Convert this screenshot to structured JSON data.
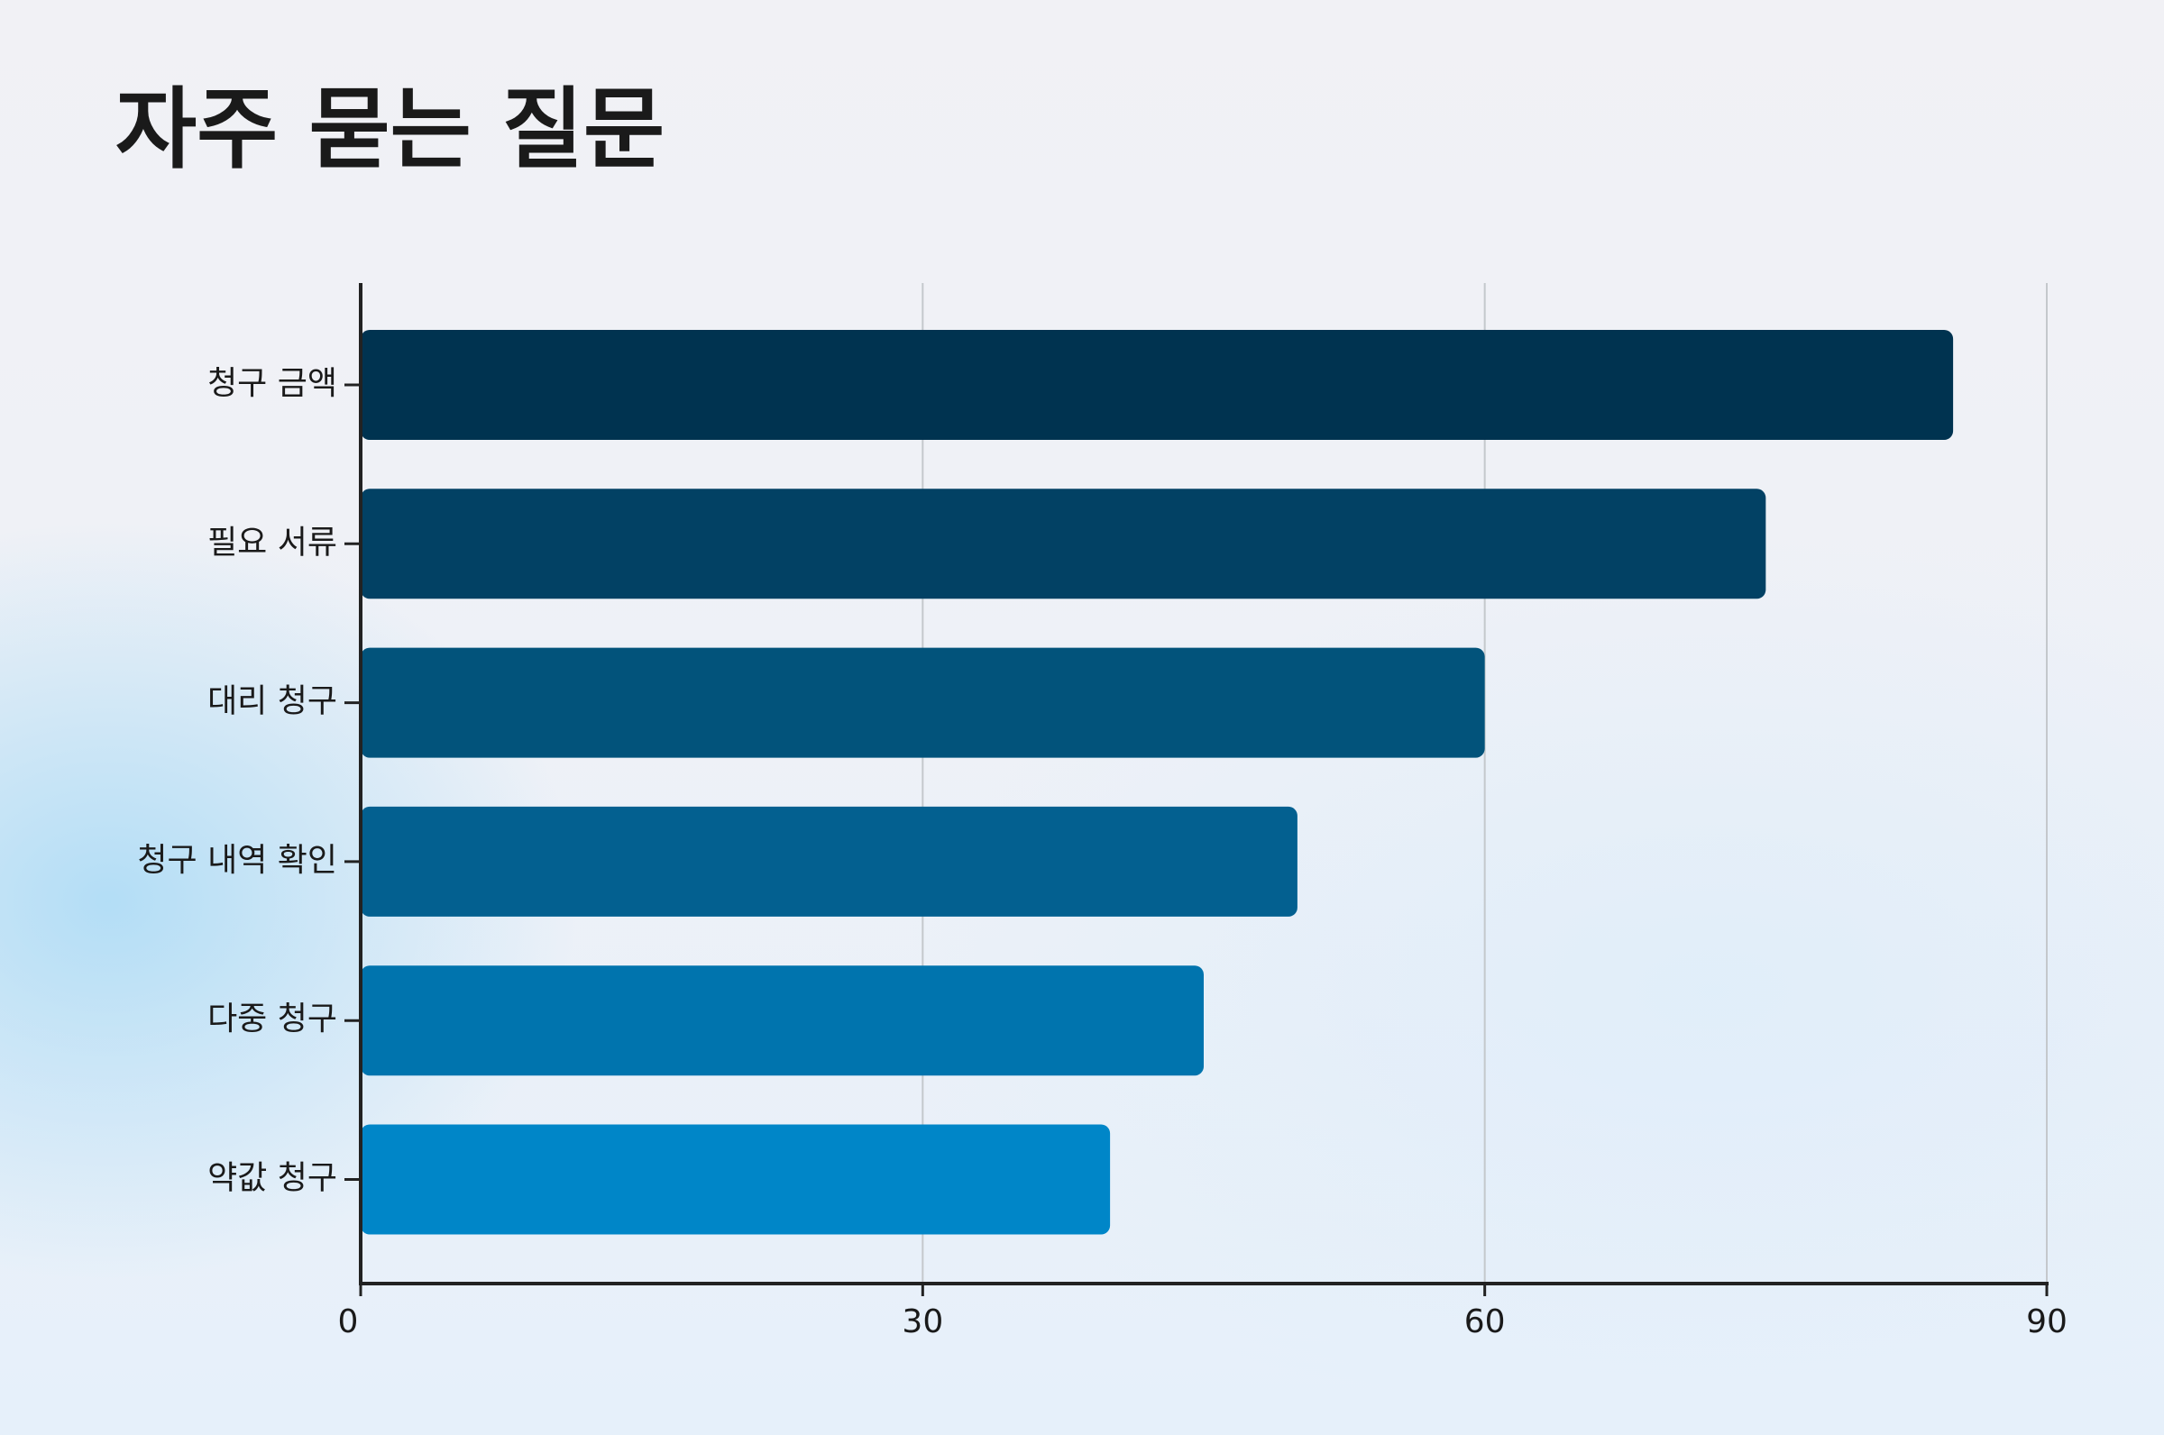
{
  "chart_data": {
    "type": "barh",
    "title": "자주 묻는 질문",
    "categories": [
      "청구 금액",
      "필요 서류",
      "대리 청구",
      "청구 내역 확인",
      "다중 청구",
      "약값 청구"
    ],
    "values": [
      85,
      75,
      60,
      50,
      45,
      40
    ],
    "colors": [
      "#003350",
      "#024164",
      "#02537b",
      "#036090",
      "#0074ae",
      "#0086c8"
    ],
    "xlim": [
      0,
      90
    ],
    "xticks": [
      0,
      30,
      60,
      90
    ],
    "grid": true
  }
}
